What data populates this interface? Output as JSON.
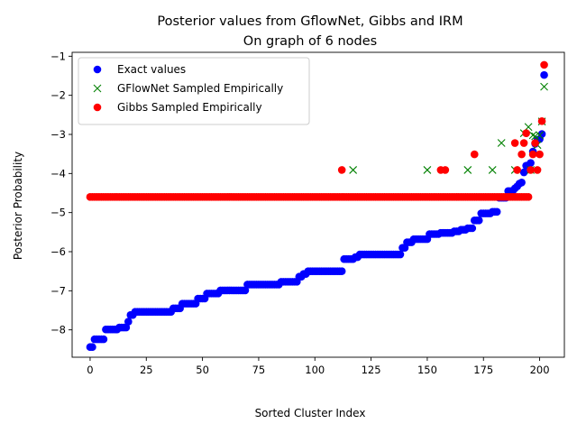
{
  "chart_data": {
    "type": "scatter",
    "title": [
      "Posterior values from GflowNet, Gibbs and IRM",
      "On graph of 6 nodes"
    ],
    "xlabel": "Sorted Cluster Index",
    "ylabel": "Posterior Probability",
    "xlim": [
      -8,
      211
    ],
    "ylim": [
      -8.7,
      -0.9
    ],
    "xticks": [
      0,
      25,
      50,
      75,
      100,
      125,
      150,
      175,
      200
    ],
    "yticks": [
      -8,
      -7,
      -6,
      -5,
      -4,
      -3,
      -2,
      -1
    ],
    "legend": {
      "placement": "top-left"
    },
    "series": [
      {
        "name": "Exact values",
        "marker": "o",
        "color": "#0000ff",
        "segments": [
          [
            0,
            1,
            -8.44
          ],
          [
            2,
            6,
            -8.24
          ],
          [
            7,
            12,
            -7.99
          ],
          [
            13,
            16,
            -7.94
          ],
          [
            17,
            17,
            -7.79
          ],
          [
            18,
            19,
            -7.62
          ],
          [
            20,
            36,
            -7.54
          ],
          [
            37,
            40,
            -7.45
          ],
          [
            41,
            47,
            -7.33
          ],
          [
            48,
            51,
            -7.2
          ],
          [
            52,
            57,
            -7.07
          ],
          [
            58,
            69,
            -6.99
          ],
          [
            70,
            84,
            -6.84
          ],
          [
            85,
            92,
            -6.77
          ],
          [
            93,
            94,
            -6.64
          ],
          [
            95,
            96,
            -6.57
          ],
          [
            97,
            112,
            -6.5
          ],
          [
            113,
            117,
            -6.19
          ],
          [
            118,
            119,
            -6.14
          ],
          [
            120,
            138,
            -6.07
          ],
          [
            139,
            140,
            -5.9
          ],
          [
            141,
            143,
            -5.76
          ],
          [
            144,
            150,
            -5.68
          ],
          [
            151,
            155,
            -5.55
          ],
          [
            156,
            161,
            -5.52
          ],
          [
            162,
            164,
            -5.48
          ],
          [
            165,
            167,
            -5.44
          ],
          [
            168,
            170,
            -5.4
          ],
          [
            171,
            173,
            -5.2
          ],
          [
            174,
            178,
            -5.02
          ],
          [
            179,
            181,
            -4.98
          ],
          [
            182,
            185,
            -4.62
          ],
          [
            186,
            188,
            -4.45
          ],
          [
            189,
            189,
            -4.38
          ],
          [
            190,
            190,
            -4.33
          ],
          [
            191,
            191,
            -4.26
          ],
          [
            192,
            192,
            -4.23
          ],
          [
            193,
            193,
            -3.97
          ],
          [
            194,
            194,
            -3.8
          ],
          [
            195,
            195,
            -3.79
          ],
          [
            196,
            196,
            -3.73
          ],
          [
            197,
            197,
            -3.44
          ],
          [
            198,
            198,
            -3.24
          ],
          [
            199,
            199,
            -3.14
          ],
          [
            200,
            200,
            -3.12
          ],
          [
            201,
            201,
            -2.99
          ],
          [
            202,
            202,
            -1.48
          ]
        ]
      },
      {
        "name": "GFlowNet Sampled Empirically",
        "marker": "x",
        "color": "#008000",
        "points": [
          [
            117,
            -3.91
          ],
          [
            150,
            -3.91
          ],
          [
            168,
            -3.91
          ],
          [
            179,
            -3.91
          ],
          [
            183,
            -3.22
          ],
          [
            189,
            -3.91
          ],
          [
            193,
            -2.97
          ],
          [
            195,
            -2.81
          ],
          [
            196,
            -3.91
          ],
          [
            197,
            -3.02
          ],
          [
            198,
            -3.05
          ],
          [
            199,
            -3.27
          ],
          [
            200,
            -3.02
          ],
          [
            201,
            -2.67
          ],
          [
            202,
            -1.78
          ]
        ]
      },
      {
        "name": "Gibbs Sampled Empirically",
        "marker": "o",
        "color": "#ff0000",
        "baseline": {
          "from": 0,
          "to": 195,
          "y": -4.6
        },
        "points": [
          [
            112,
            -3.91
          ],
          [
            156,
            -3.91
          ],
          [
            158,
            -3.91
          ],
          [
            171,
            -3.51
          ],
          [
            189,
            -3.22
          ],
          [
            190,
            -3.91
          ],
          [
            192,
            -3.51
          ],
          [
            193,
            -3.22
          ],
          [
            194,
            -2.97
          ],
          [
            196,
            -3.91
          ],
          [
            197,
            -3.51
          ],
          [
            198,
            -3.22
          ],
          [
            199,
            -3.91
          ],
          [
            200,
            -3.51
          ],
          [
            201,
            -2.66
          ],
          [
            202,
            -1.22
          ]
        ]
      }
    ]
  }
}
